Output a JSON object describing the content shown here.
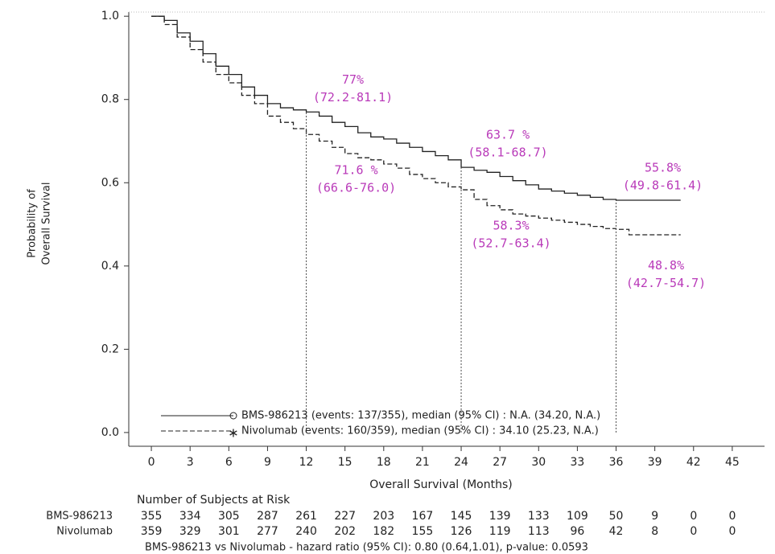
{
  "chart_data": {
    "type": "line",
    "step": true,
    "ylabel": [
      "Probability of",
      "Overall Survival"
    ],
    "xlabel": "Overall Survival (Months)",
    "xlim": [
      -1.75,
      47.5
    ],
    "ylim": [
      -0.033,
      1.01
    ],
    "xticks": [
      0,
      3,
      6,
      9,
      12,
      15,
      18,
      21,
      24,
      27,
      30,
      33,
      36,
      39,
      42,
      45
    ],
    "yticks": [
      {
        "value": 0,
        "label": "0.0"
      },
      0.2,
      0.4,
      0.6,
      0.8,
      {
        "value": 1,
        "label": "1.0"
      }
    ],
    "legend": "bottom",
    "annotation_color": "#b93ab9",
    "series": [
      {
        "name": "BMS-986213 (events: 137/355), median (95% CI) : N.A. (34.20, N.A.)",
        "color": "#222222",
        "linestyle": "solid",
        "marker": "o",
        "x": [
          0,
          1,
          2,
          3,
          4,
          5,
          6,
          7,
          8,
          9,
          10,
          11,
          12,
          13,
          14,
          15,
          16,
          17,
          18,
          19,
          20,
          21,
          22,
          23,
          24,
          25,
          26,
          27,
          28,
          29,
          30,
          31,
          32,
          33,
          34,
          35,
          36,
          38,
          40,
          41
        ],
        "values": [
          1.0,
          0.99,
          0.96,
          0.94,
          0.91,
          0.88,
          0.86,
          0.83,
          0.81,
          0.79,
          0.78,
          0.775,
          0.77,
          0.76,
          0.745,
          0.735,
          0.72,
          0.71,
          0.705,
          0.695,
          0.685,
          0.675,
          0.665,
          0.655,
          0.637,
          0.63,
          0.625,
          0.615,
          0.605,
          0.595,
          0.585,
          0.58,
          0.575,
          0.57,
          0.565,
          0.56,
          0.558,
          0.558,
          0.558,
          0.558
        ],
        "annotations": [
          {
            "x": 12,
            "value": 0.77,
            "label": "77%",
            "ci": "(72.2-81.1)"
          },
          {
            "x": 24,
            "value": 0.637,
            "label": "63.7 %",
            "ci": "(58.1-68.7)"
          },
          {
            "x": 36,
            "value": 0.558,
            "label": "55.8%",
            "ci": "(49.8-61.4)"
          }
        ]
      },
      {
        "name": "Nivolumab (events: 160/359), median (95% CI) : 34.10 (25.23, N.A.)",
        "color": "#222222",
        "linestyle": "dashed",
        "marker": "*",
        "x": [
          0,
          1,
          2,
          3,
          4,
          5,
          6,
          7,
          8,
          9,
          10,
          11,
          12,
          13,
          14,
          15,
          16,
          17,
          18,
          19,
          20,
          21,
          22,
          23,
          24,
          25,
          26,
          27,
          28,
          29,
          30,
          31,
          32,
          33,
          34,
          35,
          36,
          37,
          38,
          40,
          41
        ],
        "values": [
          1.0,
          0.98,
          0.95,
          0.92,
          0.89,
          0.86,
          0.84,
          0.81,
          0.79,
          0.76,
          0.745,
          0.73,
          0.716,
          0.7,
          0.685,
          0.67,
          0.66,
          0.655,
          0.645,
          0.635,
          0.62,
          0.61,
          0.6,
          0.59,
          0.583,
          0.56,
          0.545,
          0.535,
          0.525,
          0.52,
          0.515,
          0.51,
          0.505,
          0.5,
          0.495,
          0.49,
          0.488,
          0.475,
          0.475,
          0.475,
          0.475
        ],
        "annotations": [
          {
            "x": 12,
            "value": 0.716,
            "label": "71.6 %",
            "ci": "(66.6-76.0)"
          },
          {
            "x": 24,
            "value": 0.583,
            "label": "58.3%",
            "ci": "(52.7-63.4)"
          },
          {
            "x": 36,
            "value": 0.488,
            "label": "48.8%",
            "ci": "(42.7-54.7)"
          }
        ]
      }
    ],
    "risk_table": {
      "title": "Number of Subjects at Risk",
      "rows": [
        {
          "name": "BMS-986213",
          "values": [
            355,
            334,
            305,
            287,
            261,
            227,
            203,
            167,
            145,
            139,
            133,
            109,
            50,
            9,
            0,
            0
          ]
        },
        {
          "name": "Nivolumab",
          "values": [
            359,
            329,
            301,
            277,
            240,
            202,
            182,
            155,
            126,
            119,
            113,
            96,
            42,
            8,
            0,
            0
          ]
        }
      ]
    },
    "footnote": "BMS-986213 vs Nivolumab - hazard ratio (95% CI): 0.80 (0.64,1.01), p-value: 0.0593"
  }
}
